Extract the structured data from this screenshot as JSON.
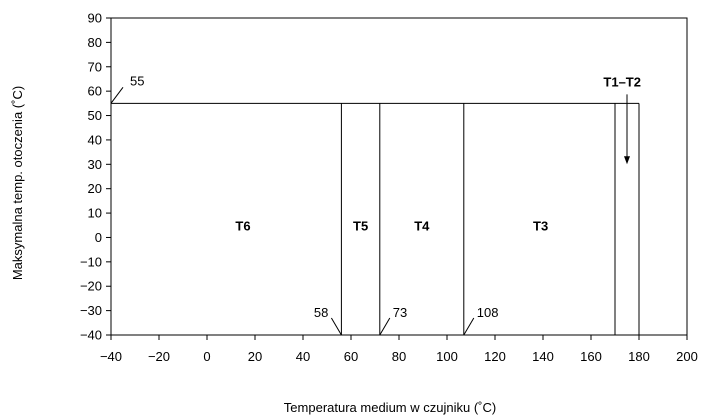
{
  "chart_data": {
    "type": "line",
    "title": "",
    "xlabel": "Temperatura medium w czujniku (˚C)",
    "ylabel": "Maksymalna temp. otoczenia (˚C)",
    "xlim": [
      -40,
      200
    ],
    "ylim": [
      -40,
      90
    ],
    "x_ticks": [
      -40,
      -20,
      0,
      20,
      40,
      60,
      80,
      100,
      120,
      140,
      160,
      180,
      200
    ],
    "y_ticks": [
      90,
      80,
      70,
      60,
      50,
      40,
      30,
      20,
      10,
      0,
      -10,
      -20,
      -30,
      -40
    ],
    "x_tick_labels": [
      "−40",
      "−20",
      "0",
      "20",
      "40",
      "60",
      "80",
      "100",
      "120",
      "140",
      "160",
      "180",
      "200"
    ],
    "y_tick_labels": [
      "90",
      "80",
      "70",
      "60",
      "50",
      "40",
      "30",
      "20",
      "10",
      "0",
      "−10",
      "−20",
      "−30",
      "−40"
    ],
    "grid": false,
    "max_ambient": 55,
    "ambient_min": -40,
    "boundaries": [
      {
        "x": 56,
        "label": "58"
      },
      {
        "x": 72,
        "label": "73"
      },
      {
        "x": 107,
        "label": "108"
      },
      {
        "x": 170,
        "label": ""
      },
      {
        "x": 180,
        "label": ""
      }
    ],
    "zones": [
      {
        "name": "T6",
        "x": 15,
        "y": 5
      },
      {
        "name": "T5",
        "x": 64,
        "y": 5
      },
      {
        "name": "T4",
        "x": 89.5,
        "y": 5
      },
      {
        "name": "T3",
        "x": 139,
        "y": 5
      }
    ],
    "annotations": [
      {
        "text": "55",
        "x": -40,
        "y": 55
      },
      {
        "text": "T1–T2",
        "x": 173,
        "y": 64
      }
    ]
  }
}
